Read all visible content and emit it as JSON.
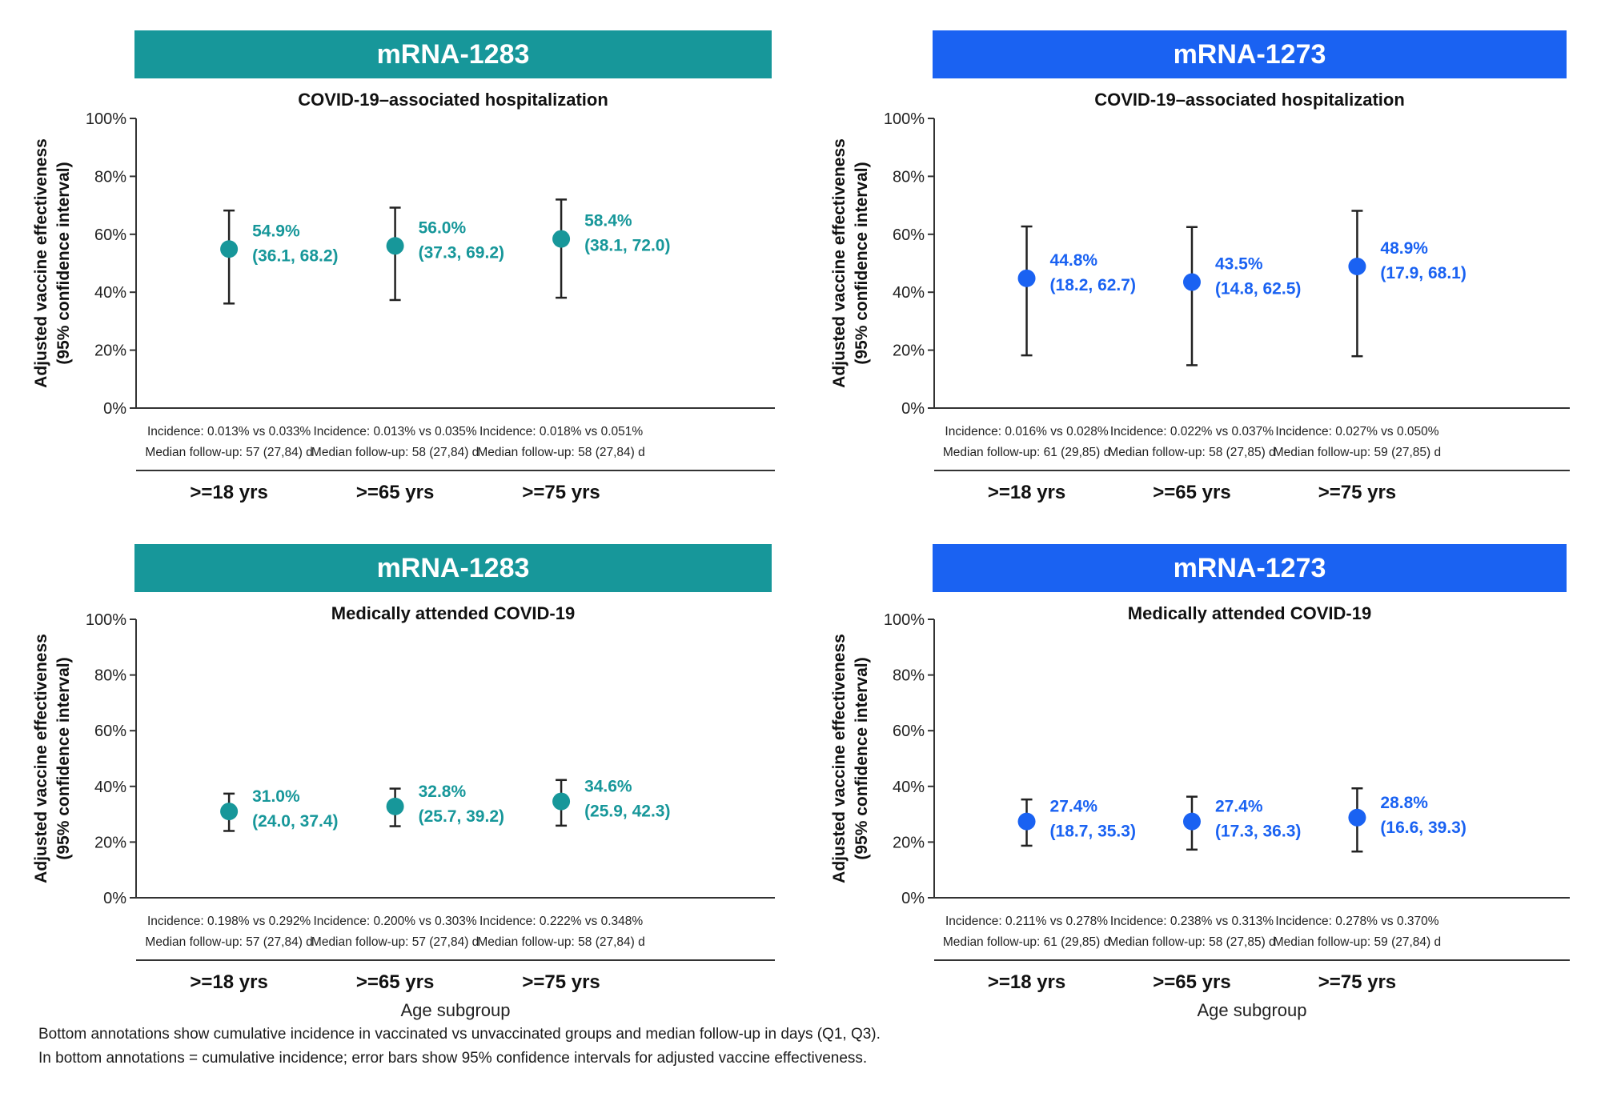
{
  "footnotes": [
    "Bottom annotations show cumulative incidence in vaccinated vs unvaccinated groups and median follow-up in days (Q1, Q3).",
    "In bottom annotations = cumulative incidence; error bars show 95% confidence intervals for adjusted vaccine effectiveness."
  ],
  "colors": {
    "mRNA-1283": "#17979a",
    "mRNA-1273": "#1a62f2",
    "axis": "#333333"
  },
  "chart_data": [
    {
      "type": "scatter",
      "vaccine": "mRNA-1283",
      "color": "#17979a",
      "title": "COVID-19–associated hospitalization",
      "ylabel": [
        "Adjusted vaccine effectiveness",
        "(95% confidence interval)"
      ],
      "xlabel": "",
      "ylim": [
        0,
        100
      ],
      "yticks": [
        "0%",
        "20%",
        "40%",
        "60%",
        "80%",
        "100%"
      ],
      "grid": false,
      "categories": [
        ">=18 yrs",
        ">=65 yrs",
        ">=75 yrs"
      ],
      "values": [
        54.9,
        56.0,
        58.4
      ],
      "ci_lower": [
        36.1,
        37.3,
        38.1
      ],
      "ci_upper": [
        68.2,
        69.2,
        72.0
      ],
      "value_labels": [
        "54.9%",
        "56.0%",
        "58.4%"
      ],
      "ci_labels": [
        "(36.1, 68.2)",
        "(37.3, 69.2)",
        "(38.1, 72.0)"
      ],
      "incidence": [
        "Incidence: 0.013% vs 0.033%",
        "Incidence: 0.013% vs 0.035%",
        "Incidence: 0.018% vs 0.051%"
      ],
      "followup": [
        "Median follow-up: 57 (27,84) d",
        "Median follow-up: 58 (27,84) d",
        "Median follow-up: 58 (27,84) d"
      ]
    },
    {
      "type": "scatter",
      "vaccine": "mRNA-1273",
      "color": "#1a62f2",
      "title": "COVID-19–associated hospitalization",
      "ylabel": [
        "Adjusted vaccine effectiveness",
        "(95% confidence interval)"
      ],
      "xlabel": "",
      "ylim": [
        0,
        100
      ],
      "yticks": [
        "0%",
        "20%",
        "40%",
        "60%",
        "80%",
        "100%"
      ],
      "grid": false,
      "categories": [
        ">=18 yrs",
        ">=65 yrs",
        ">=75 yrs"
      ],
      "values": [
        44.8,
        43.5,
        48.9
      ],
      "ci_lower": [
        18.2,
        14.8,
        17.9
      ],
      "ci_upper": [
        62.7,
        62.5,
        68.1
      ],
      "value_labels": [
        "44.8%",
        "43.5%",
        "48.9%"
      ],
      "ci_labels": [
        "(18.2, 62.7)",
        "(14.8, 62.5)",
        "(17.9, 68.1)"
      ],
      "incidence": [
        "Incidence: 0.016% vs 0.028%",
        "Incidence: 0.022% vs 0.037%",
        "Incidence: 0.027% vs 0.050%"
      ],
      "followup": [
        "Median follow-up: 61 (29,85) d",
        "Median follow-up: 58 (27,85) d",
        "Median follow-up: 59 (27,85) d"
      ]
    },
    {
      "type": "scatter",
      "vaccine": "mRNA-1283",
      "color": "#17979a",
      "title": "Medically attended COVID-19",
      "ylabel": [
        "Adjusted vaccine effectiveness",
        "(95% confidence interval)"
      ],
      "xlabel": "Age subgroup",
      "ylim": [
        0,
        100
      ],
      "yticks": [
        "0%",
        "20%",
        "40%",
        "60%",
        "80%",
        "100%"
      ],
      "grid": false,
      "categories": [
        ">=18 yrs",
        ">=65 yrs",
        ">=75 yrs"
      ],
      "values": [
        31.0,
        32.8,
        34.6
      ],
      "ci_lower": [
        24.0,
        25.7,
        25.9
      ],
      "ci_upper": [
        37.4,
        39.2,
        42.3
      ],
      "value_labels": [
        "31.0%",
        "32.8%",
        "34.6%"
      ],
      "ci_labels": [
        "(24.0, 37.4)",
        "(25.7, 39.2)",
        "(25.9, 42.3)"
      ],
      "incidence": [
        "Incidence: 0.198% vs 0.292%",
        "Incidence: 0.200% vs 0.303%",
        "Incidence: 0.222% vs 0.348%"
      ],
      "followup": [
        "Median follow-up: 57 (27,84) d",
        "Median follow-up: 57 (27,84) d",
        "Median follow-up: 58 (27,84) d"
      ]
    },
    {
      "type": "scatter",
      "vaccine": "mRNA-1273",
      "color": "#1a62f2",
      "title": "Medically attended COVID-19",
      "ylabel": [
        "Adjusted vaccine effectiveness",
        "(95% confidence interval)"
      ],
      "xlabel": "Age subgroup",
      "ylim": [
        0,
        100
      ],
      "yticks": [
        "0%",
        "20%",
        "40%",
        "60%",
        "80%",
        "100%"
      ],
      "grid": false,
      "categories": [
        ">=18 yrs",
        ">=65 yrs",
        ">=75 yrs"
      ],
      "values": [
        27.4,
        27.4,
        28.8
      ],
      "ci_lower": [
        18.7,
        17.3,
        16.6
      ],
      "ci_upper": [
        35.3,
        36.3,
        39.3
      ],
      "value_labels": [
        "27.4%",
        "27.4%",
        "28.8%"
      ],
      "ci_labels": [
        "(18.7, 35.3)",
        "(17.3, 36.3)",
        "(16.6, 39.3)"
      ],
      "incidence": [
        "Incidence: 0.211% vs 0.278%",
        "Incidence: 0.238% vs 0.313%",
        "Incidence: 0.278% vs 0.370%"
      ],
      "followup": [
        "Median follow-up: 61 (29,85) d",
        "Median follow-up: 58 (27,85) d",
        "Median follow-up: 59 (27,84) d"
      ]
    }
  ]
}
